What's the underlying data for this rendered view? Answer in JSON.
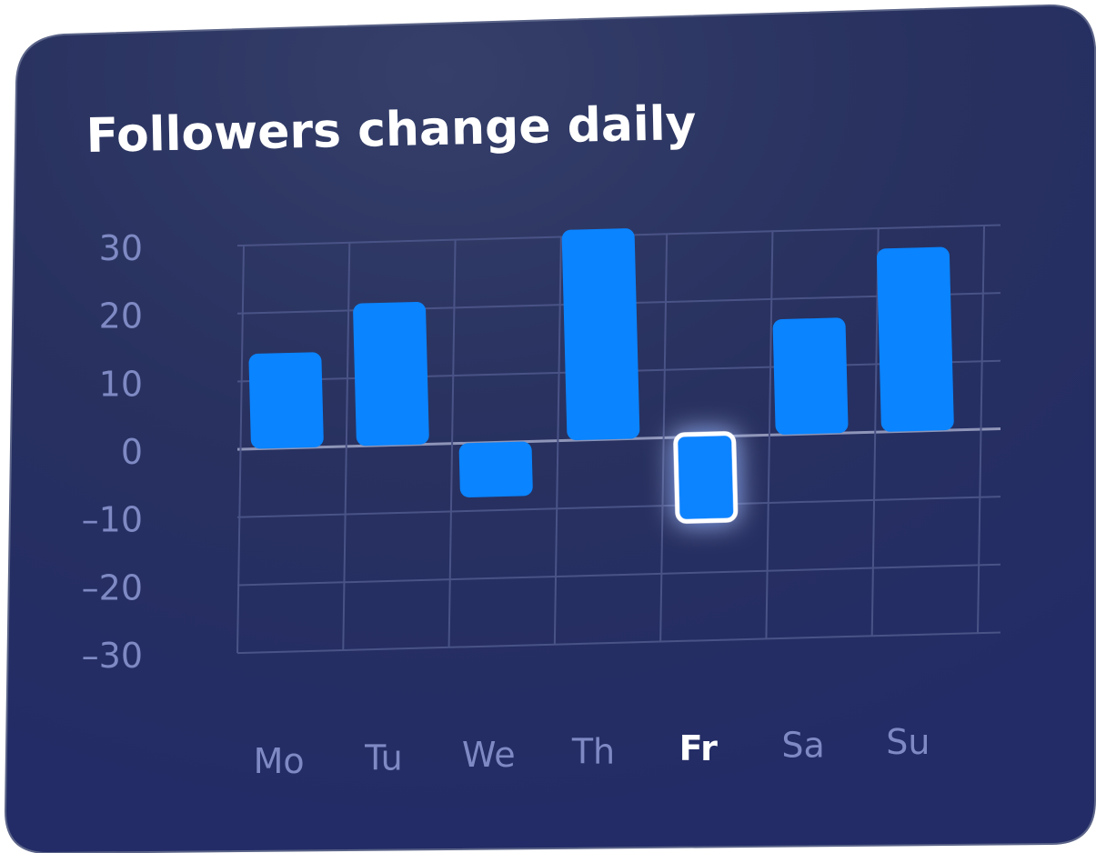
{
  "chart_data": {
    "type": "bar",
    "title": "Followers change daily",
    "categories": [
      "Mo",
      "Tu",
      "We",
      "Th",
      "Fr",
      "Sa",
      "Su"
    ],
    "values": [
      14,
      21,
      -8,
      31,
      -12,
      17,
      27
    ],
    "yticks": [
      30,
      20,
      10,
      0,
      -10,
      -20,
      -30
    ],
    "ylim": [
      -30,
      30
    ],
    "highlighted": "Fr",
    "xlabel": "",
    "ylabel": "",
    "grid": true
  },
  "colors": {
    "bar": "#0a84ff",
    "highlight_border": "#ffffff",
    "tick_label": "#7f8ac4",
    "grid": "#4a5386",
    "title": "#ffffff",
    "bg_top": "#323e6a",
    "bg_bottom": "#232d68"
  }
}
